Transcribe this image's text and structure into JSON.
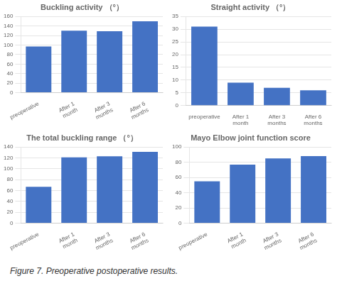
{
  "chart_data": [
    {
      "type": "bar",
      "title": "Buckling activity （°）",
      "categories": [
        "preoperative",
        "After 1\nmonth",
        "After 3\nmonths",
        "After 6\nmonths"
      ],
      "values": [
        97,
        130,
        129,
        150
      ],
      "color": "#4472C4",
      "ylim": [
        0,
        160
      ],
      "yticks": [
        0,
        20,
        40,
        60,
        80,
        100,
        120,
        140,
        160
      ],
      "grid": true
    },
    {
      "type": "bar",
      "title": "Straight activity （°）",
      "categories": [
        "preoperative",
        "After 1\nmonth",
        "After 3\nmonths",
        "After 6\nmonths"
      ],
      "values": [
        31,
        9,
        7,
        6
      ],
      "color": "#4472C4",
      "ylim": [
        0,
        35
      ],
      "yticks": [
        0,
        5,
        10,
        15,
        20,
        25,
        30,
        35
      ],
      "grid": true
    },
    {
      "type": "bar",
      "title": "The total buckling range （°）",
      "categories": [
        "preoperative",
        "After 1\nmonth",
        "After 3\nmonths",
        "After 6\nmonths"
      ],
      "values": [
        67,
        121,
        123,
        131
      ],
      "color": "#4472C4",
      "ylim": [
        0,
        140
      ],
      "yticks": [
        0,
        20,
        40,
        60,
        80,
        100,
        120,
        140
      ],
      "grid": true
    },
    {
      "type": "bar",
      "title": "Mayo Elbow joint function score",
      "categories": [
        "preoperative",
        "After 1\nmonth",
        "After 3\nmonths",
        "After 6\nmonths"
      ],
      "values": [
        55,
        77,
        85,
        88
      ],
      "color": "#4472C4",
      "ylim": [
        0,
        100
      ],
      "yticks": [
        0,
        20,
        40,
        60,
        80,
        100
      ],
      "grid": true
    }
  ],
  "caption": "Figure 7. Preoperative postoperative results."
}
